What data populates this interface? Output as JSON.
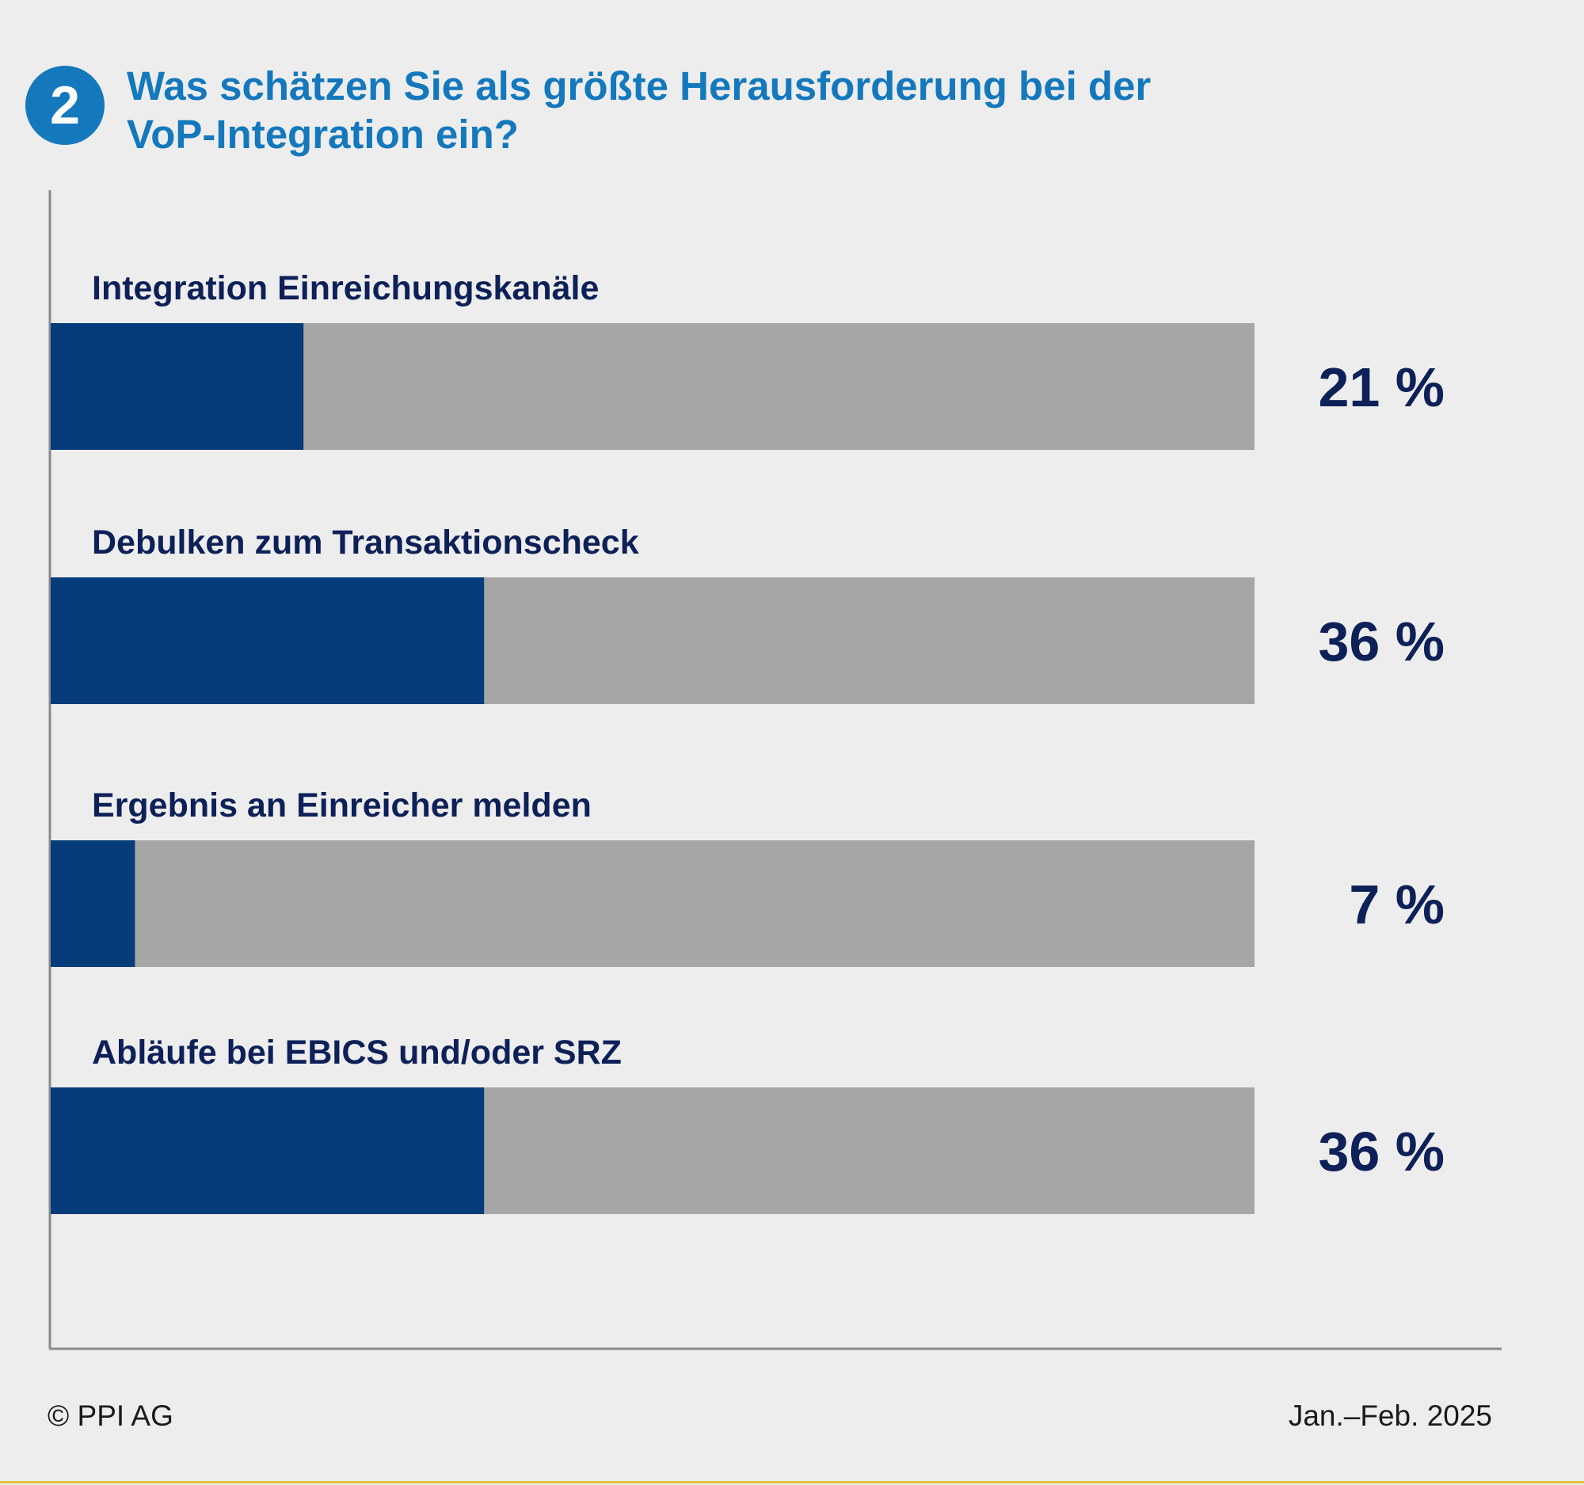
{
  "header": {
    "badge_number": "2",
    "title": "Was schätzen Sie als größte Herausforderung bei der VoP-Integration ein?"
  },
  "chart_data": {
    "type": "bar",
    "orientation": "horizontal",
    "categories": [
      "Integration Einreichungskanäle",
      "Debulken zum Transaktionscheck",
      "Ergebnis an Einreicher melden",
      "Abläufe bei EBICS und/oder SRZ"
    ],
    "values": [
      21,
      36,
      7,
      36
    ],
    "value_labels": [
      "21 %",
      "36 %",
      "7 %",
      "36 %"
    ],
    "unit": "%",
    "xlim": [
      0,
      100
    ],
    "grid": false,
    "colors": {
      "value": "#063c7a",
      "remainder": "#a6a6a6",
      "text": "#0d2058"
    }
  },
  "footer": {
    "copyright": "© PPI AG",
    "date": "Jan.–Feb. 2025"
  }
}
